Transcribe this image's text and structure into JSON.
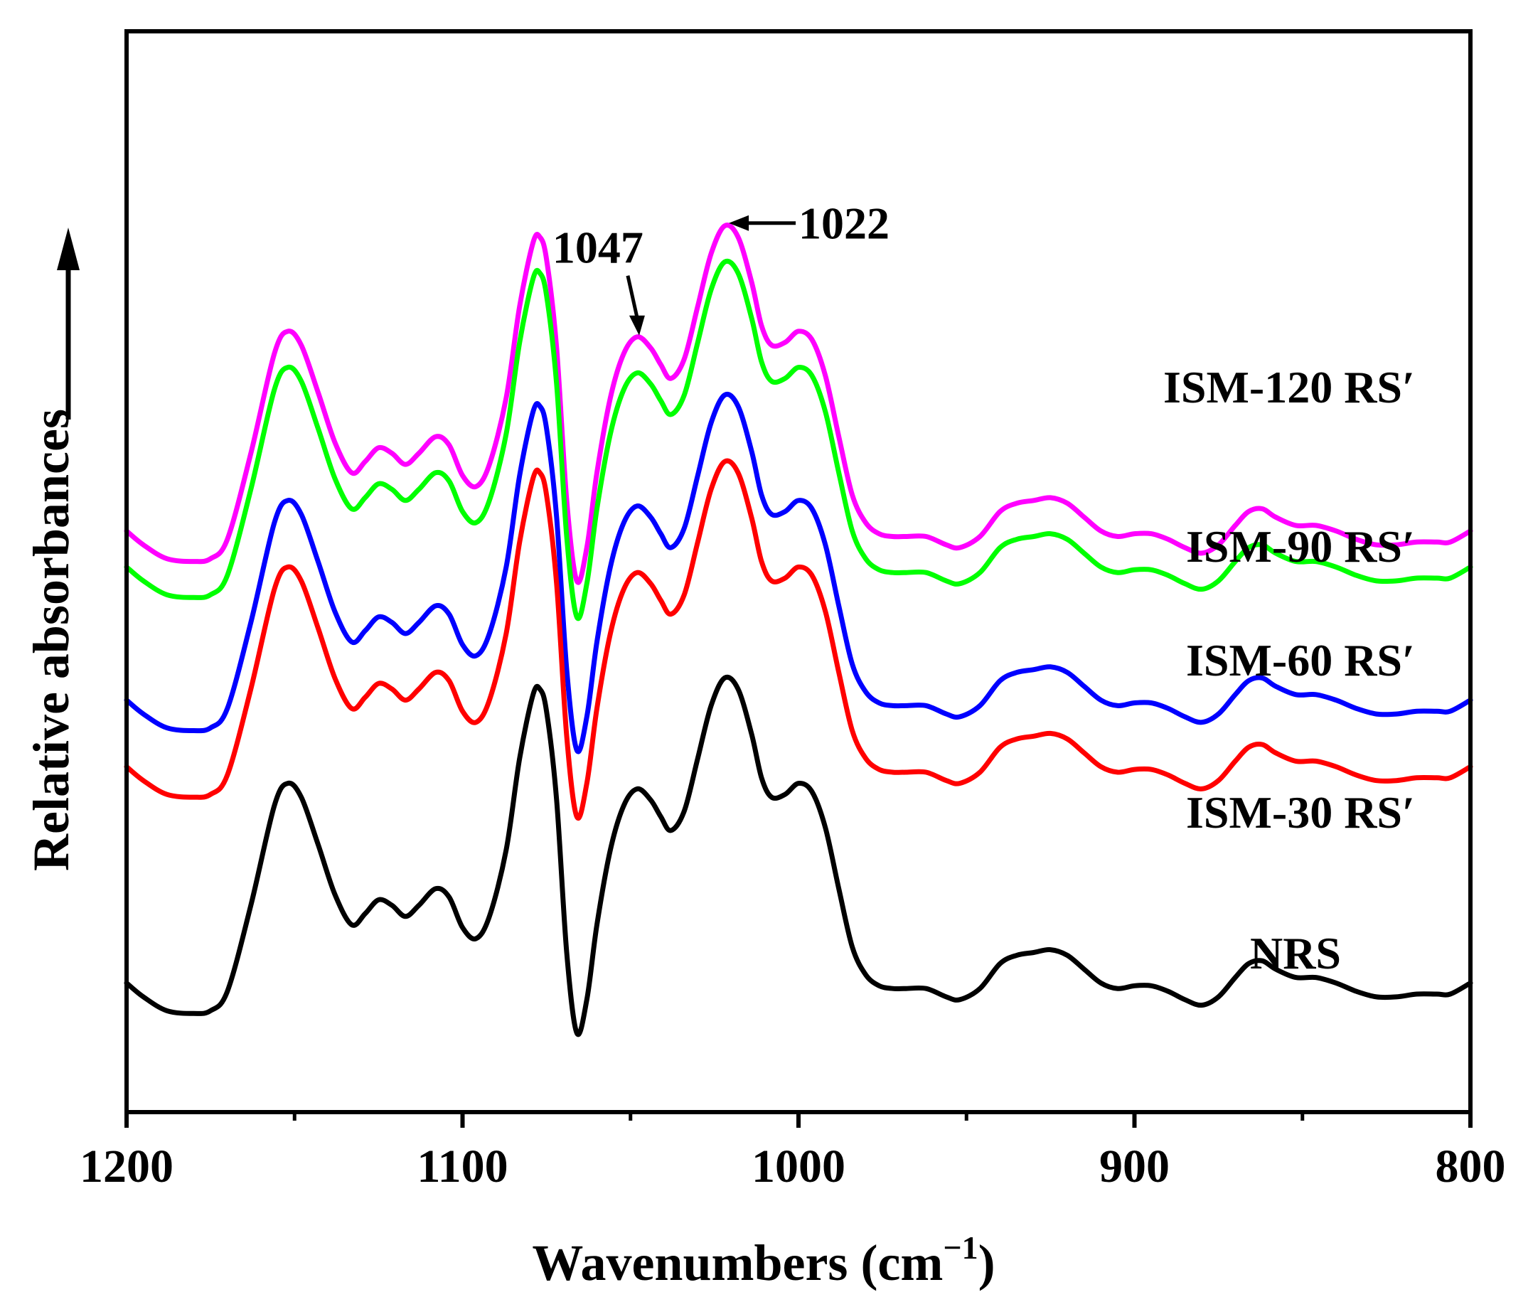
{
  "chart_data": {
    "type": "line",
    "title": "",
    "xlabel": "Wavenumbers (cm",
    "xlabel_sup": "−1",
    "xlabel_close": ")",
    "ylabel": "Relative absorbances",
    "xlim": [
      1200,
      800
    ],
    "x_reversed": true,
    "y_ticks_shown": false,
    "x_ticks": [
      {
        "value": 1200,
        "label": "1200"
      },
      {
        "value": 1100,
        "label": "1100"
      },
      {
        "value": 1000,
        "label": "1000"
      },
      {
        "value": 900,
        "label": "900"
      },
      {
        "value": 800,
        "label": "800"
      }
    ],
    "shape_x": [
      1200,
      1195,
      1188,
      1180,
      1175,
      1170,
      1163,
      1156,
      1152,
      1148,
      1143,
      1138,
      1133,
      1129,
      1125,
      1121,
      1117,
      1113,
      1108,
      1104,
      1100,
      1096,
      1092,
      1087,
      1083,
      1079,
      1077,
      1075,
      1072,
      1069,
      1066,
      1063,
      1060,
      1056,
      1052,
      1048,
      1044,
      1041,
      1038,
      1034,
      1030,
      1026,
      1022,
      1018,
      1014,
      1011,
      1008,
      1004,
      1000,
      996,
      992,
      988,
      984,
      980,
      976,
      972,
      968,
      962,
      956,
      952,
      946,
      940,
      935,
      930,
      925,
      920,
      915,
      910,
      905,
      900,
      895,
      890,
      885,
      880,
      875,
      870,
      866,
      862,
      858,
      852,
      846,
      840,
      834,
      828,
      822,
      816,
      810,
      806,
      800
    ],
    "shape_y": [
      0.24,
      0.19,
      0.14,
      0.13,
      0.14,
      0.21,
      0.52,
      0.88,
      0.96,
      0.91,
      0.74,
      0.56,
      0.45,
      0.49,
      0.54,
      0.52,
      0.48,
      0.52,
      0.58,
      0.55,
      0.44,
      0.4,
      0.48,
      0.72,
      1.05,
      1.28,
      1.3,
      1.22,
      0.9,
      0.35,
      0.06,
      0.18,
      0.45,
      0.72,
      0.88,
      0.94,
      0.9,
      0.84,
      0.79,
      0.86,
      1.05,
      1.24,
      1.34,
      1.3,
      1.14,
      0.98,
      0.91,
      0.92,
      0.96,
      0.93,
      0.8,
      0.58,
      0.37,
      0.27,
      0.23,
      0.22,
      0.22,
      0.22,
      0.19,
      0.18,
      0.22,
      0.31,
      0.34,
      0.35,
      0.36,
      0.34,
      0.29,
      0.24,
      0.22,
      0.23,
      0.23,
      0.21,
      0.18,
      0.16,
      0.19,
      0.26,
      0.31,
      0.32,
      0.29,
      0.26,
      0.26,
      0.24,
      0.21,
      0.19,
      0.19,
      0.2,
      0.2,
      0.2,
      0.24
    ],
    "series": [
      {
        "name": "NRS",
        "label": "NRS",
        "color": "#000000",
        "offset": 0.0
      },
      {
        "name": "ISM-30 RS′",
        "label": "ISM-30 RS′",
        "color": "#ff0000",
        "offset": 0.78
      },
      {
        "name": "ISM-60 RS′",
        "label": "ISM-60 RS′",
        "color": "#0000ff",
        "offset": 1.02
      },
      {
        "name": "ISM-90 RS′",
        "label": "ISM-90 RS′",
        "color": "#00ff00",
        "offset": 1.5
      },
      {
        "name": "ISM-120 RS′",
        "label": "ISM-120 RS′",
        "color": "#ff00ff",
        "offset": 1.63
      }
    ],
    "annotations": [
      {
        "text": "1047",
        "x": 1047
      },
      {
        "text": "1022",
        "x": 1022
      }
    ]
  }
}
